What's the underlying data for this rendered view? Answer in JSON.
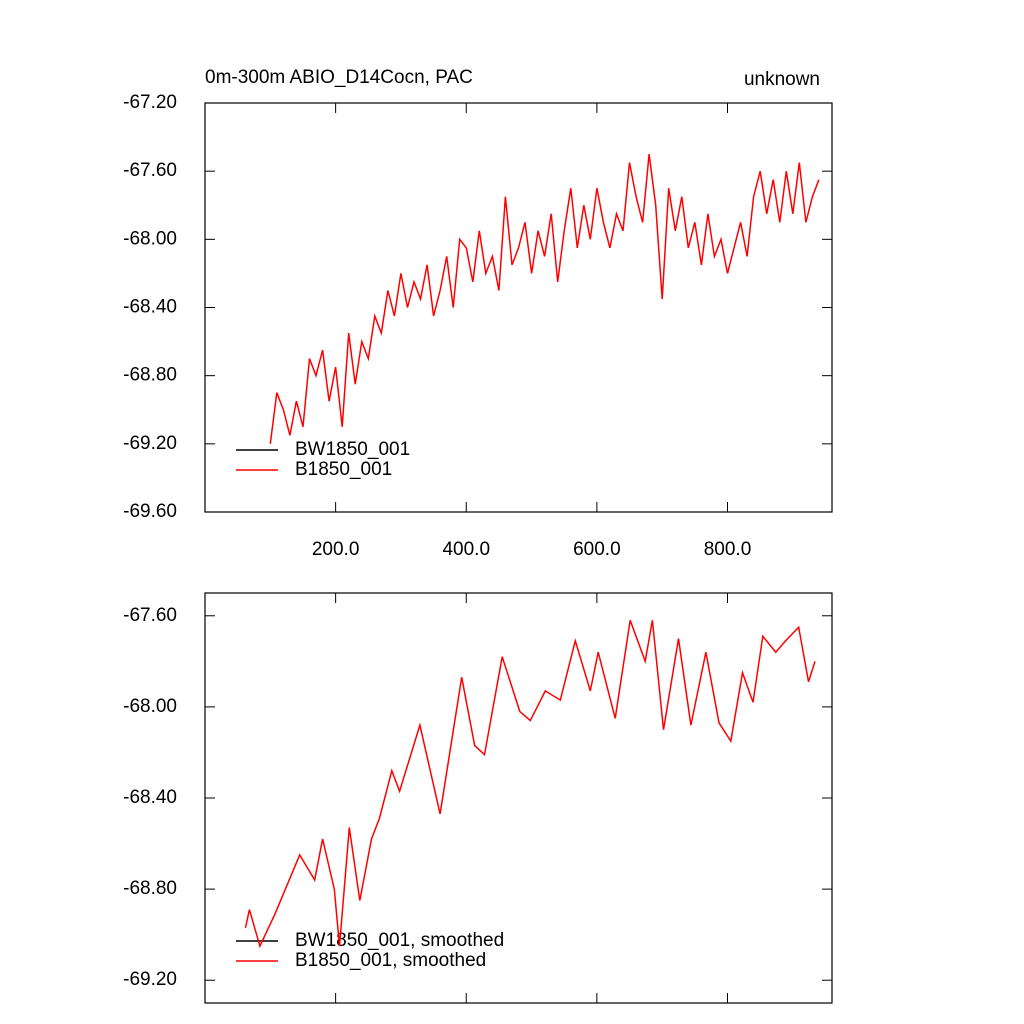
{
  "chart_data": [
    {
      "type": "line",
      "title": "0m-300m ABIO_D14Cocn, PAC",
      "right_string": "unknown",
      "x": [
        100,
        110,
        120,
        130,
        140,
        150,
        160,
        170,
        180,
        190,
        200,
        210,
        220,
        230,
        240,
        250,
        260,
        270,
        280,
        290,
        300,
        310,
        320,
        330,
        340,
        350,
        360,
        370,
        380,
        390,
        400,
        410,
        420,
        430,
        440,
        450,
        460,
        470,
        480,
        490,
        500,
        510,
        520,
        530,
        540,
        550,
        560,
        570,
        580,
        590,
        600,
        610,
        620,
        630,
        640,
        650,
        660,
        670,
        680,
        690,
        700,
        710,
        720,
        730,
        740,
        750,
        760,
        770,
        780,
        790,
        800,
        810,
        820,
        830,
        840,
        850,
        860,
        870,
        880,
        890,
        900,
        910,
        920,
        930,
        940
      ],
      "series": [
        {
          "name": "BW1850_001",
          "color": "#000000",
          "values": [
            null,
            null,
            null,
            null,
            null,
            null,
            null,
            null,
            null,
            null,
            null,
            null,
            null,
            null,
            null,
            null,
            null,
            null,
            null,
            null,
            null,
            null,
            null,
            null,
            null,
            null,
            null,
            null,
            null,
            null,
            null,
            null,
            null,
            null,
            null,
            null,
            null,
            null,
            null,
            null,
            null,
            null,
            null,
            null,
            null,
            null,
            null,
            null,
            null,
            null,
            null,
            null,
            null,
            null,
            null,
            null,
            null,
            null,
            null,
            null,
            null,
            null,
            null,
            null,
            null,
            null,
            null,
            null,
            null,
            null,
            null,
            null,
            null,
            null,
            null,
            null,
            null,
            null,
            null,
            null,
            null,
            null,
            null,
            null,
            null
          ]
        },
        {
          "name": "B1850_001",
          "color": "#ff0000",
          "values": [
            -69.2,
            -68.9,
            -69.0,
            -69.15,
            -68.95,
            -69.1,
            -68.7,
            -68.8,
            -68.65,
            -68.95,
            -68.75,
            -69.1,
            -68.55,
            -68.85,
            -68.6,
            -68.7,
            -68.45,
            -68.55,
            -68.3,
            -68.45,
            -68.2,
            -68.4,
            -68.25,
            -68.35,
            -68.15,
            -68.45,
            -68.3,
            -68.1,
            -68.4,
            -68.0,
            -68.05,
            -68.25,
            -67.95,
            -68.2,
            -68.1,
            -68.3,
            -67.75,
            -68.15,
            -68.05,
            -67.9,
            -68.2,
            -67.95,
            -68.1,
            -67.85,
            -68.25,
            -67.95,
            -67.7,
            -68.05,
            -67.8,
            -68.0,
            -67.7,
            -67.9,
            -68.05,
            -67.85,
            -67.95,
            -67.55,
            -67.75,
            -67.9,
            -67.5,
            -67.8,
            -68.35,
            -67.7,
            -67.95,
            -67.75,
            -68.05,
            -67.9,
            -68.15,
            -67.85,
            -68.1,
            -68.0,
            -68.2,
            -68.05,
            -67.9,
            -68.1,
            -67.75,
            -67.6,
            -67.85,
            -67.65,
            -67.9,
            -67.6,
            -67.85,
            -67.55,
            -67.9,
            -67.75,
            -67.65
          ]
        }
      ],
      "xlim": [
        0,
        960
      ],
      "xticks": [
        {
          "value": 200,
          "label": "200.0"
        },
        {
          "value": 400,
          "label": "400.0"
        },
        {
          "value": 600,
          "label": "600.0"
        },
        {
          "value": 800,
          "label": "800.0"
        }
      ],
      "ylim": [
        -69.6,
        -67.2
      ],
      "yticks": [
        {
          "value": -67.2,
          "label": "-67.20"
        },
        {
          "value": -67.6,
          "label": "-67.60"
        },
        {
          "value": -68.0,
          "label": "-68.00"
        },
        {
          "value": -68.4,
          "label": "-68.40"
        },
        {
          "value": -68.8,
          "label": "-68.80"
        },
        {
          "value": -69.2,
          "label": "-69.20"
        },
        {
          "value": -69.6,
          "label": "-69.60"
        }
      ],
      "legend": "lower left"
    },
    {
      "type": "line",
      "x": [
        62,
        68,
        84,
        107,
        145,
        168,
        180,
        198,
        206,
        221,
        237,
        255,
        267,
        286,
        298,
        329,
        360,
        393,
        413,
        428,
        455,
        482,
        498,
        521,
        544,
        567,
        590,
        602,
        628,
        651,
        674,
        685,
        702,
        725,
        744,
        767,
        787,
        805,
        823,
        839,
        854,
        874,
        889,
        909,
        924,
        934
      ],
      "series": [
        {
          "name": "BW1850_001, smoothed",
          "color": "#000000",
          "values": [
            null,
            null,
            null,
            null,
            null,
            null,
            null,
            null,
            null,
            null,
            null,
            null,
            null,
            null,
            null,
            null,
            null,
            null,
            null,
            null,
            null,
            null,
            null,
            null,
            null,
            null,
            null,
            null,
            null,
            null,
            null,
            null,
            null,
            null,
            null,
            null,
            null,
            null,
            null,
            null,
            null,
            null,
            null,
            null,
            null,
            null
          ]
        },
        {
          "name": "B1850_001, smoothed",
          "color": "#ff0000",
          "values": [
            -68.97,
            -68.89,
            -69.05,
            -68.91,
            -68.65,
            -68.76,
            -68.58,
            -68.8,
            -69.05,
            -68.53,
            -68.85,
            -68.58,
            -68.49,
            -68.28,
            -68.37,
            -68.08,
            -68.47,
            -67.87,
            -68.17,
            -68.21,
            -67.78,
            -68.02,
            -68.06,
            -67.93,
            -67.97,
            -67.71,
            -67.93,
            -67.76,
            -68.05,
            -67.62,
            -67.8,
            -67.62,
            -68.1,
            -67.7,
            -68.08,
            -67.76,
            -68.07,
            -68.15,
            -67.85,
            -67.98,
            -67.69,
            -67.76,
            -67.71,
            -67.65,
            -67.89,
            -67.8
          ]
        }
      ],
      "xlim": [
        0,
        960
      ],
      "xticks": [
        200,
        400,
        600,
        800
      ],
      "ylim": [
        -69.3,
        -67.5
      ],
      "yticks": [
        {
          "value": -67.6,
          "label": "-67.60"
        },
        {
          "value": -68.0,
          "label": "-68.00"
        },
        {
          "value": -68.4,
          "label": "-68.40"
        },
        {
          "value": -68.8,
          "label": "-68.80"
        },
        {
          "value": -69.2,
          "label": "-69.20"
        }
      ],
      "legend": "lower left"
    }
  ]
}
